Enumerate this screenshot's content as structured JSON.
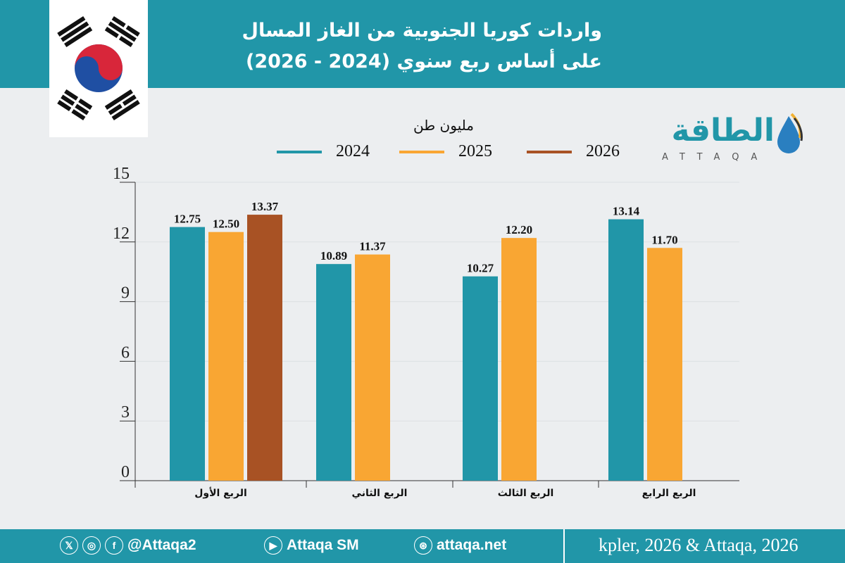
{
  "header": {
    "title_line1": "واردات كوريا الجنوبية من الغاز المسال",
    "title_line2": "على أساس ربع سنوي (2024 - 2026)"
  },
  "logo": {
    "arabic": "الطاقة",
    "latin": "ATTAQA"
  },
  "chart_data": {
    "type": "bar",
    "ylabel": "مليون طن",
    "categories": [
      "الربع الأول",
      "الربع الثاني",
      "الربع الثالث",
      "الربع الرابع"
    ],
    "series": [
      {
        "name": "2024",
        "color": "#2196a8",
        "values": [
          12.75,
          10.89,
          10.27,
          13.14
        ],
        "labels": [
          "12.75",
          "10.89",
          "10.27",
          "13.14"
        ]
      },
      {
        "name": "2025",
        "color": "#f9a633",
        "values": [
          12.5,
          11.37,
          12.2,
          11.7
        ],
        "labels": [
          "12.50",
          "11.37",
          "12.20",
          "11.70"
        ]
      },
      {
        "name": "2026",
        "color": "#a85224",
        "values": [
          13.37,
          null,
          null,
          null
        ],
        "labels": [
          "13.37",
          "",
          "",
          ""
        ]
      }
    ],
    "ylim": [
      0,
      15
    ],
    "yticks": [
      "0",
      "3",
      "6",
      "9",
      "12",
      "15"
    ],
    "grid": true,
    "legend": "top"
  },
  "footer": {
    "handle": "@Attaqa2",
    "youtube": "Attaqa SM",
    "website": "attaqa.net",
    "source": "kpler, 2026 & Attaqa, 2026",
    "icons": [
      "x-icon",
      "instagram-icon",
      "facebook-icon",
      "youtube-icon",
      "globe-icon"
    ]
  }
}
